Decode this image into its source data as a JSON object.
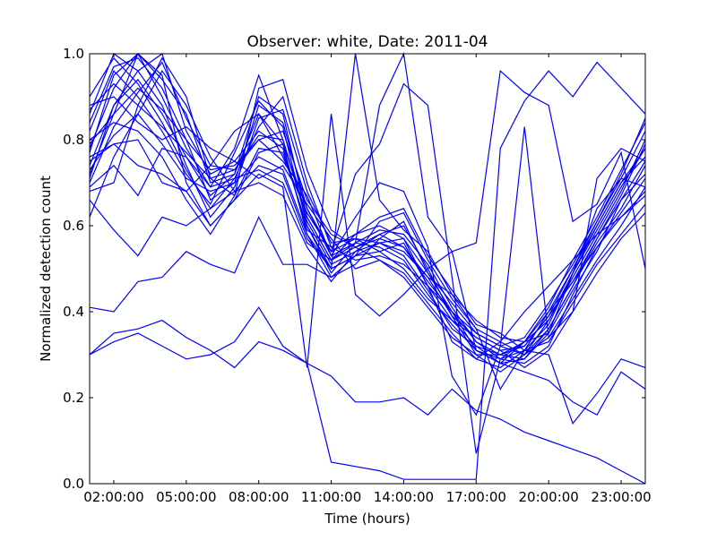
{
  "chart_data": {
    "type": "line",
    "title": "Observer: white, Date: 2011-04",
    "xlabel": "Time (hours)",
    "ylabel": "Normalized detection count",
    "x": [
      1,
      2,
      3,
      4,
      5,
      6,
      7,
      8,
      9,
      10,
      11,
      12,
      13,
      14,
      15,
      16,
      17,
      18,
      19,
      20,
      21,
      22,
      23,
      24
    ],
    "xlim": [
      1,
      24
    ],
    "ylim": [
      0,
      1
    ],
    "x_ticks": [
      {
        "value": 2,
        "label": "02:00:00"
      },
      {
        "value": 5,
        "label": "05:00:00"
      },
      {
        "value": 8,
        "label": "08:00:00"
      },
      {
        "value": 11,
        "label": "11:00:00"
      },
      {
        "value": 14,
        "label": "14:00:00"
      },
      {
        "value": 17,
        "label": "17:00:00"
      },
      {
        "value": 20,
        "label": "20:00:00"
      },
      {
        "value": 23,
        "label": "23:00:00"
      }
    ],
    "y_ticks": [
      {
        "value": 0.0,
        "label": "0.0"
      },
      {
        "value": 0.2,
        "label": "0.2"
      },
      {
        "value": 0.4,
        "label": "0.4"
      },
      {
        "value": 0.6,
        "label": "0.6"
      },
      {
        "value": 0.8,
        "label": "0.8"
      },
      {
        "value": 1.0,
        "label": "1.0"
      }
    ],
    "grid": false,
    "legend": null,
    "line_color": "#0000ff",
    "series": [
      {
        "values": [
          0.78,
          0.92,
          1.0,
          0.94,
          0.86,
          0.7,
          0.72,
          0.9,
          0.86,
          0.62,
          0.52,
          0.55,
          0.57,
          0.55,
          0.47,
          0.4,
          0.33,
          0.3,
          0.33,
          0.38,
          0.48,
          0.58,
          0.68,
          0.8
        ]
      },
      {
        "values": [
          0.84,
          0.97,
          0.99,
          0.92,
          0.8,
          0.66,
          0.7,
          0.88,
          0.84,
          0.64,
          0.53,
          0.56,
          0.55,
          0.52,
          0.44,
          0.37,
          0.31,
          0.29,
          0.31,
          0.4,
          0.5,
          0.6,
          0.7,
          0.76
        ]
      },
      {
        "values": [
          0.74,
          0.88,
          0.96,
          1.0,
          0.82,
          0.72,
          0.75,
          0.82,
          0.78,
          0.59,
          0.55,
          0.58,
          0.6,
          0.57,
          0.49,
          0.42,
          0.35,
          0.32,
          0.3,
          0.36,
          0.46,
          0.56,
          0.64,
          0.74
        ]
      },
      {
        "values": [
          0.7,
          0.83,
          0.91,
          0.98,
          0.85,
          0.74,
          0.73,
          0.8,
          0.82,
          0.66,
          0.58,
          0.55,
          0.58,
          0.6,
          0.5,
          0.39,
          0.3,
          0.3,
          0.29,
          0.35,
          0.45,
          0.54,
          0.66,
          0.72
        ]
      },
      {
        "values": [
          0.77,
          0.95,
          1.0,
          0.9,
          0.78,
          0.69,
          0.78,
          0.95,
          0.8,
          0.61,
          0.51,
          0.54,
          0.56,
          0.53,
          0.45,
          0.36,
          0.32,
          0.28,
          0.33,
          0.41,
          0.52,
          0.62,
          0.73,
          0.84
        ]
      },
      {
        "values": [
          0.86,
          1.0,
          0.96,
          0.88,
          0.74,
          0.62,
          0.69,
          0.85,
          0.87,
          0.68,
          0.56,
          0.57,
          0.54,
          0.5,
          0.43,
          0.38,
          0.34,
          0.31,
          0.32,
          0.39,
          0.47,
          0.57,
          0.67,
          0.79
        ]
      },
      {
        "values": [
          0.62,
          0.76,
          0.86,
          0.96,
          0.88,
          0.76,
          0.68,
          0.74,
          0.72,
          0.57,
          0.5,
          0.53,
          0.61,
          0.63,
          0.52,
          0.43,
          0.36,
          0.33,
          0.3,
          0.34,
          0.43,
          0.52,
          0.6,
          0.69
        ]
      },
      {
        "values": [
          0.9,
          0.99,
          0.93,
          0.84,
          0.73,
          0.64,
          0.71,
          0.83,
          0.9,
          0.7,
          0.55,
          0.52,
          0.53,
          0.51,
          0.46,
          0.4,
          0.35,
          0.32,
          0.34,
          0.42,
          0.51,
          0.61,
          0.71,
          0.82
        ]
      },
      {
        "values": [
          0.68,
          0.7,
          0.88,
          0.99,
          0.9,
          0.71,
          0.67,
          0.78,
          0.77,
          0.6,
          0.49,
          0.56,
          0.59,
          0.58,
          0.51,
          0.41,
          0.33,
          0.29,
          0.28,
          0.32,
          0.44,
          0.55,
          0.63,
          0.71
        ]
      },
      {
        "values": [
          0.8,
          0.84,
          0.82,
          0.76,
          0.66,
          0.58,
          0.67,
          0.92,
          0.94,
          0.73,
          0.59,
          0.55,
          0.52,
          0.49,
          0.42,
          0.35,
          0.29,
          0.27,
          0.31,
          0.37,
          0.49,
          0.59,
          0.69,
          0.78
        ]
      },
      {
        "values": [
          0.75,
          0.79,
          0.8,
          0.7,
          0.68,
          0.74,
          0.82,
          0.86,
          0.76,
          0.63,
          0.54,
          0.57,
          0.56,
          0.54,
          0.48,
          0.44,
          0.38,
          0.34,
          0.33,
          0.4,
          0.47,
          0.55,
          0.62,
          0.67
        ]
      },
      {
        "values": [
          0.72,
          0.86,
          1.0,
          0.95,
          0.7,
          0.6,
          0.66,
          0.77,
          0.79,
          0.58,
          0.48,
          0.51,
          0.57,
          0.61,
          0.49,
          0.4,
          0.31,
          0.28,
          0.29,
          0.36,
          0.46,
          0.57,
          0.66,
          0.75
        ]
      },
      {
        "values": [
          0.88,
          0.9,
          0.84,
          0.8,
          0.83,
          0.78,
          0.75,
          0.71,
          0.74,
          0.65,
          0.57,
          0.5,
          0.52,
          0.48,
          0.41,
          0.34,
          0.3,
          0.26,
          0.3,
          0.38,
          0.49,
          0.6,
          0.7,
          0.78
        ]
      },
      {
        "values": [
          0.69,
          0.74,
          0.67,
          0.78,
          0.76,
          0.69,
          0.71,
          0.73,
          0.7,
          0.56,
          0.52,
          0.58,
          0.62,
          0.64,
          0.53,
          0.45,
          0.37,
          0.35,
          0.31,
          0.33,
          0.42,
          0.51,
          0.58,
          0.65
        ]
      },
      {
        "values": [
          0.82,
          0.96,
          0.9,
          0.82,
          0.72,
          0.65,
          0.77,
          0.89,
          0.83,
          0.6,
          0.5,
          0.53,
          0.54,
          0.56,
          0.46,
          0.38,
          0.32,
          0.3,
          0.32,
          0.39,
          0.5,
          0.61,
          0.72,
          0.85
        ]
      },
      {
        "values": [
          0.66,
          0.59,
          0.53,
          0.62,
          0.6,
          0.64,
          0.68,
          0.7,
          0.67,
          0.55,
          0.47,
          0.54,
          0.58,
          0.55,
          0.48,
          0.39,
          0.34,
          0.31,
          0.27,
          0.31,
          0.4,
          0.49,
          0.57,
          0.63
        ]
      },
      {
        "values": [
          0.41,
          0.4,
          0.47,
          0.48,
          0.54,
          0.51,
          0.49,
          0.62,
          0.51,
          0.51,
          0.48,
          0.53,
          0.56,
          0.57,
          0.46,
          0.33,
          0.29,
          0.33,
          0.4,
          0.46,
          0.52,
          0.58,
          0.62,
          0.68
        ]
      },
      {
        "values": [
          0.3,
          0.35,
          0.36,
          0.38,
          0.34,
          0.31,
          0.27,
          0.33,
          0.31,
          0.28,
          0.05,
          0.04,
          0.03,
          0.01,
          0.01,
          0.01,
          0.01,
          0.78,
          0.89,
          0.96,
          0.9,
          0.98,
          0.92,
          0.86
        ]
      },
      {
        "values": [
          0.3,
          0.33,
          0.35,
          0.32,
          0.29,
          0.3,
          0.33,
          0.41,
          0.32,
          0.28,
          0.25,
          0.19,
          0.19,
          0.2,
          0.16,
          0.22,
          0.17,
          0.15,
          0.12,
          0.1,
          0.08,
          0.06,
          0.03,
          0.0
        ]
      },
      {
        "values": [
          0.76,
          0.79,
          0.74,
          0.72,
          0.68,
          0.6,
          0.66,
          0.72,
          0.69,
          0.27,
          0.86,
          0.44,
          0.39,
          0.44,
          0.5,
          0.54,
          0.31,
          0.28,
          0.26,
          0.24,
          0.19,
          0.16,
          0.26,
          0.22
        ]
      },
      {
        "values": [
          0.73,
          0.81,
          0.86,
          0.79,
          0.71,
          0.68,
          0.7,
          0.76,
          0.73,
          0.58,
          0.5,
          1.0,
          0.66,
          0.59,
          0.54,
          0.44,
          0.36,
          0.22,
          0.31,
          0.3,
          0.14,
          0.21,
          0.29,
          0.27
        ]
      },
      {
        "values": [
          0.79,
          0.86,
          0.92,
          0.87,
          0.8,
          0.73,
          0.74,
          0.8,
          0.75,
          0.67,
          0.53,
          0.62,
          0.7,
          0.68,
          0.55,
          0.25,
          0.16,
          0.32,
          0.83,
          0.34,
          0.4,
          0.71,
          0.78,
          0.75
        ]
      },
      {
        "values": [
          0.71,
          0.88,
          0.94,
          0.86,
          0.76,
          0.67,
          0.72,
          0.86,
          0.79,
          0.64,
          0.54,
          0.72,
          0.79,
          0.93,
          0.88,
          0.48,
          0.07,
          0.29,
          0.33,
          0.35,
          0.49,
          0.64,
          0.71,
          0.69
        ]
      },
      {
        "values": [
          0.87,
          0.93,
          0.88,
          0.83,
          0.77,
          0.71,
          0.73,
          0.81,
          0.8,
          0.62,
          0.52,
          0.56,
          0.88,
          1.0,
          0.62,
          0.54,
          0.56,
          0.96,
          0.91,
          0.88,
          0.61,
          0.65,
          0.77,
          0.5
        ]
      }
    ]
  }
}
